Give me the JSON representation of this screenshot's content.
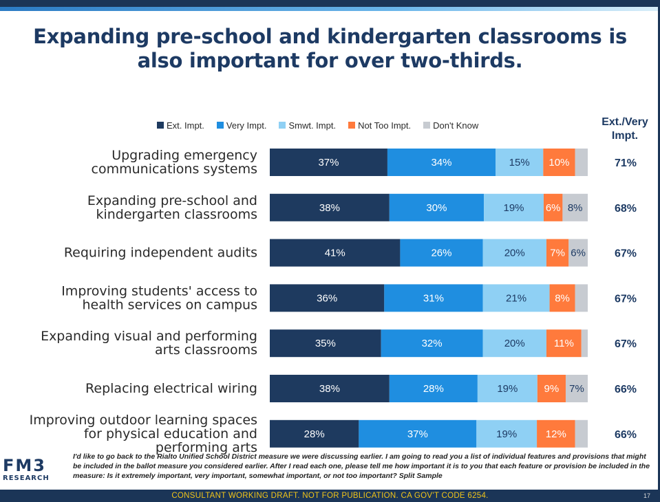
{
  "title": {
    "line1": "Expanding pre-school and kindergarten classrooms is",
    "line2": "also important for over two-thirds."
  },
  "summary_header": {
    "line1": "Ext./Very",
    "line2": "Impt."
  },
  "colors": {
    "ext": "#1e3a5f",
    "very": "#1f8ee0",
    "smwt": "#8fd0f4",
    "not_too": "#ff7a3c",
    "dont_know": "#c7cbd1"
  },
  "chart_data": {
    "type": "bar",
    "orientation": "horizontal",
    "stacked": true,
    "legend_position": "top",
    "series_names": [
      "Ext. Impt.",
      "Very Impt.",
      "Smwt. Impt.",
      "Not Too Impt.",
      "Don't Know"
    ],
    "rows": [
      {
        "label": [
          "Upgrading emergency",
          "communications systems"
        ],
        "values": [
          37,
          34,
          15,
          10,
          4
        ],
        "labels": [
          "37%",
          "34%",
          "15%",
          "10%",
          ""
        ],
        "summary": "71%"
      },
      {
        "label": [
          "Expanding pre-school and",
          "kindergarten classrooms"
        ],
        "values": [
          38,
          30,
          19,
          6,
          8
        ],
        "labels": [
          "38%",
          "30%",
          "19%",
          "6%",
          "8%"
        ],
        "summary": "68%"
      },
      {
        "label": [
          "Requiring independent audits"
        ],
        "values": [
          41,
          26,
          20,
          7,
          6
        ],
        "labels": [
          "41%",
          "26%",
          "20%",
          "7%",
          "6%"
        ],
        "summary": "67%"
      },
      {
        "label": [
          "Improving students' access to",
          "health services on campus"
        ],
        "values": [
          36,
          31,
          21,
          8,
          4
        ],
        "labels": [
          "36%",
          "31%",
          "21%",
          "8%",
          ""
        ],
        "summary": "67%"
      },
      {
        "label": [
          "Expanding visual and performing",
          "arts classrooms"
        ],
        "values": [
          35,
          32,
          20,
          11,
          2
        ],
        "labels": [
          "35%",
          "32%",
          "20%",
          "11%",
          ""
        ],
        "summary": "67%"
      },
      {
        "label": [
          "Replacing electrical wiring"
        ],
        "values": [
          38,
          28,
          19,
          9,
          7
        ],
        "labels": [
          "38%",
          "28%",
          "19%",
          "9%",
          "7%"
        ],
        "summary": "66%"
      },
      {
        "label": [
          "Improving outdoor learning spaces",
          "for physical education and",
          "performing arts"
        ],
        "values": [
          28,
          37,
          19,
          12,
          4
        ],
        "labels": [
          "28%",
          "37%",
          "19%",
          "12%",
          ""
        ],
        "summary": "66%"
      }
    ]
  },
  "footnote": "I'd like to go back to the Rialto Unified School District measure we were discussing earlier. I am going to read you a list of individual features and provisions that might be included in the ballot measure you considered earlier. After I read each one, please tell me how important it is to you that each feature or provision be included in the measure: Is it extremely important, very important, somewhat important, or not too important? Split Sample",
  "logo": {
    "main": "FM3",
    "sub": "RESEARCH"
  },
  "footer_text": "CONSULTANT WORKING DRAFT. NOT FOR PUBLICATION. CA GOV'T CODE 6254.",
  "page_number": "17"
}
